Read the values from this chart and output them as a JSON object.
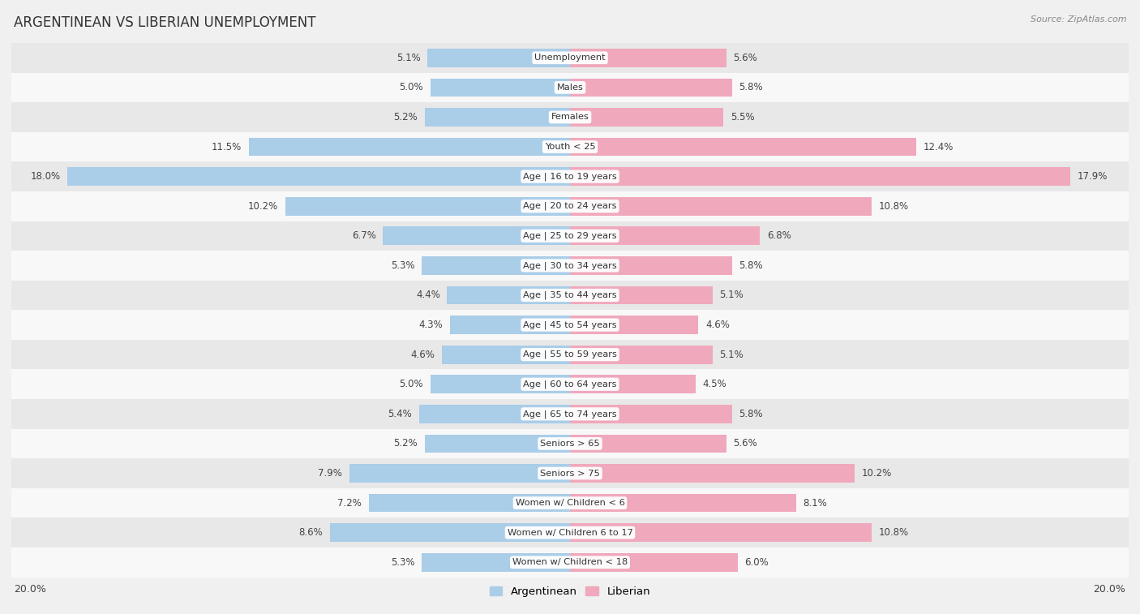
{
  "title": "ARGENTINEAN VS LIBERIAN UNEMPLOYMENT",
  "source": "Source: ZipAtlas.com",
  "categories": [
    "Unemployment",
    "Males",
    "Females",
    "Youth < 25",
    "Age | 16 to 19 years",
    "Age | 20 to 24 years",
    "Age | 25 to 29 years",
    "Age | 30 to 34 years",
    "Age | 35 to 44 years",
    "Age | 45 to 54 years",
    "Age | 55 to 59 years",
    "Age | 60 to 64 years",
    "Age | 65 to 74 years",
    "Seniors > 65",
    "Seniors > 75",
    "Women w/ Children < 6",
    "Women w/ Children 6 to 17",
    "Women w/ Children < 18"
  ],
  "argentinean": [
    5.1,
    5.0,
    5.2,
    11.5,
    18.0,
    10.2,
    6.7,
    5.3,
    4.4,
    4.3,
    4.6,
    5.0,
    5.4,
    5.2,
    7.9,
    7.2,
    8.6,
    5.3
  ],
  "liberian": [
    5.6,
    5.8,
    5.5,
    12.4,
    17.9,
    10.8,
    6.8,
    5.8,
    5.1,
    4.6,
    5.1,
    4.5,
    5.8,
    5.6,
    10.2,
    8.1,
    10.8,
    6.0
  ],
  "argentinean_color": "#aacde8",
  "liberian_color": "#f0a8bc",
  "bar_height": 0.62,
  "xlim": 20.0,
  "background_color": "#f0f0f0",
  "row_colors": [
    "#e8e8e8",
    "#f8f8f8"
  ]
}
